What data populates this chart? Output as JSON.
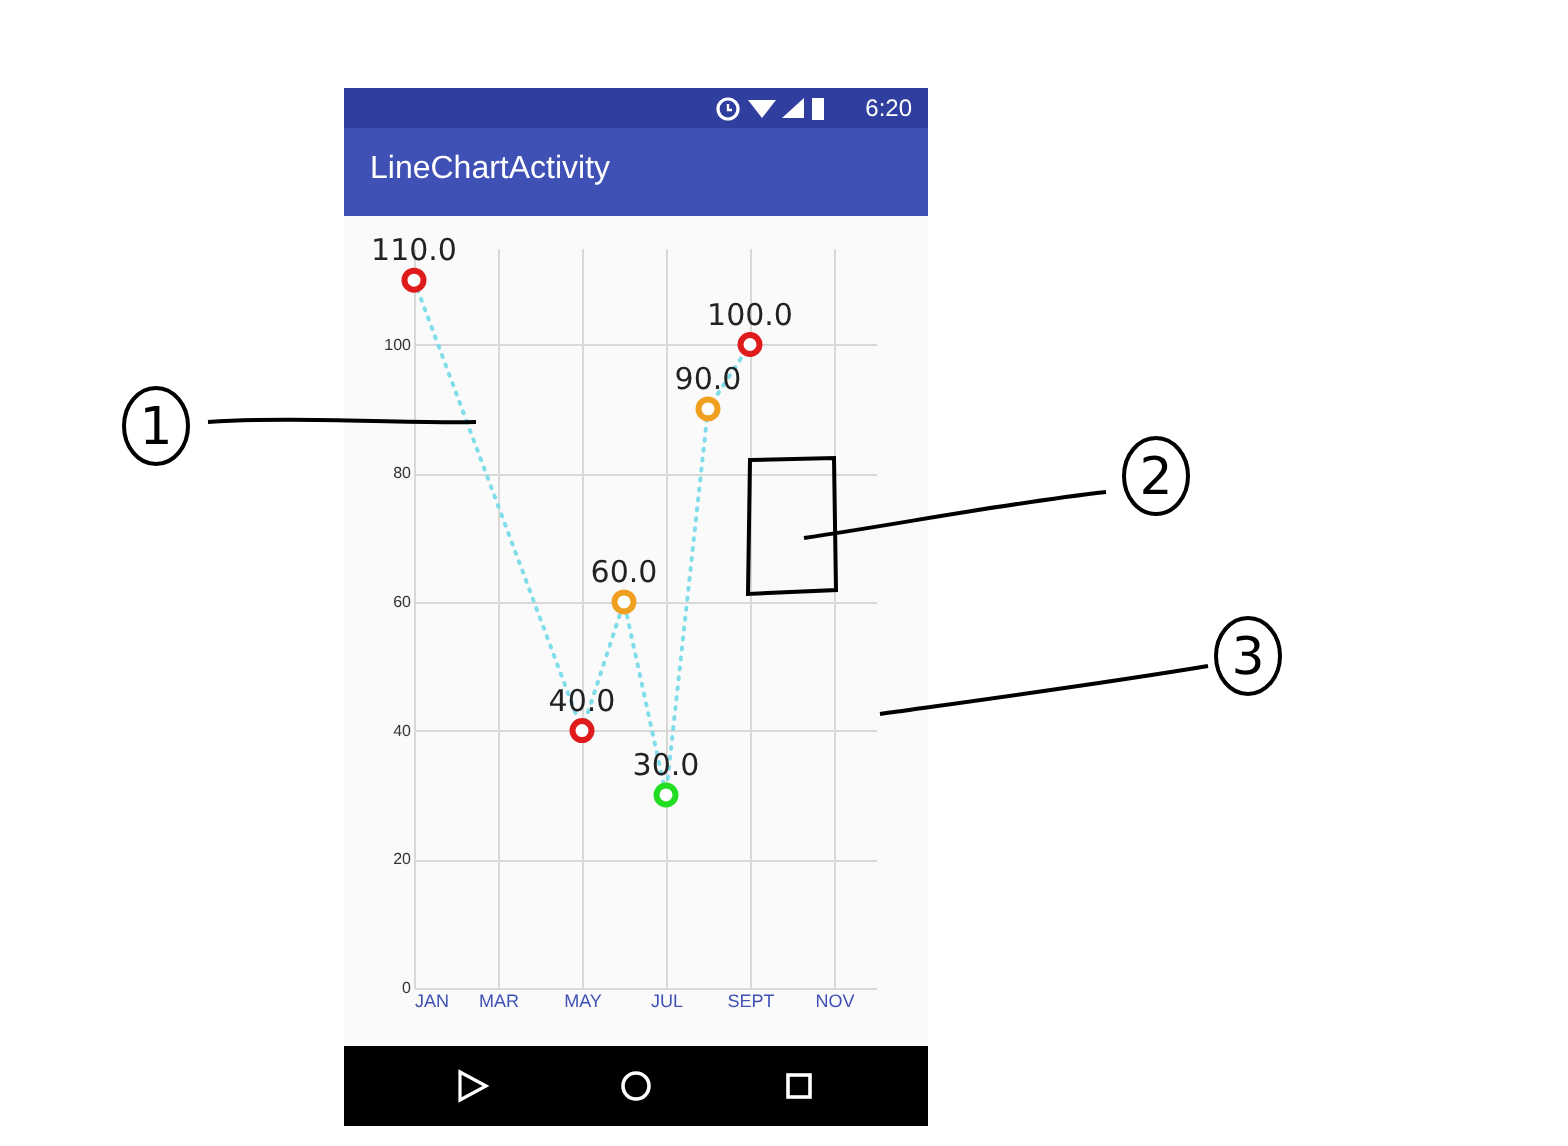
{
  "chart_data": {
    "type": "line",
    "title": "LineChartActivity",
    "categories": [
      "JAN",
      null,
      "MAR",
      null,
      "MAY",
      null,
      "JUL",
      null,
      "SEPT",
      null,
      "NOV",
      null
    ],
    "series": [
      {
        "color": "#80deea",
        "values": [
          110,
          null,
          null,
          null,
          40,
          60,
          30,
          90,
          100,
          null,
          null,
          null
        ],
        "colors": [
          "#e01b1b",
          null,
          null,
          null,
          "#e01b1b",
          "#f0a020",
          "#22dd22",
          "#f0a020",
          "#e01b1b",
          null,
          null,
          null
        ],
        "value_labels": [
          "110.0",
          null,
          null,
          null,
          "40.0",
          "60.0",
          "30.0",
          "90.0",
          "100.0",
          null,
          null,
          null
        ]
      }
    ],
    "ylim": [
      0,
      115
    ],
    "yticks": [
      0,
      20,
      40,
      60,
      80,
      100
    ],
    "grid": true,
    "marker": "circle",
    "line_style": "dotted",
    "annotations": [
      "1",
      "2",
      "3",
      "6:20"
    ]
  }
}
